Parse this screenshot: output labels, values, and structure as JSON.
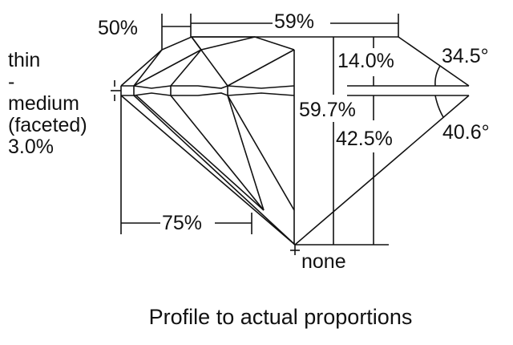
{
  "labels": {
    "table_width": "59%",
    "star_length": "50%",
    "crown_height": "14.0%",
    "crown_angle": "34.5°",
    "total_depth": "59.7%",
    "pavilion_depth": "42.5%",
    "pavilion_angle": "40.6°",
    "lower_half_length": "75%",
    "culet": "none",
    "girdle": [
      "thin",
      "-",
      "medium",
      "(faceted)",
      "3.0%"
    ]
  },
  "caption": "Profile to actual proportions"
}
